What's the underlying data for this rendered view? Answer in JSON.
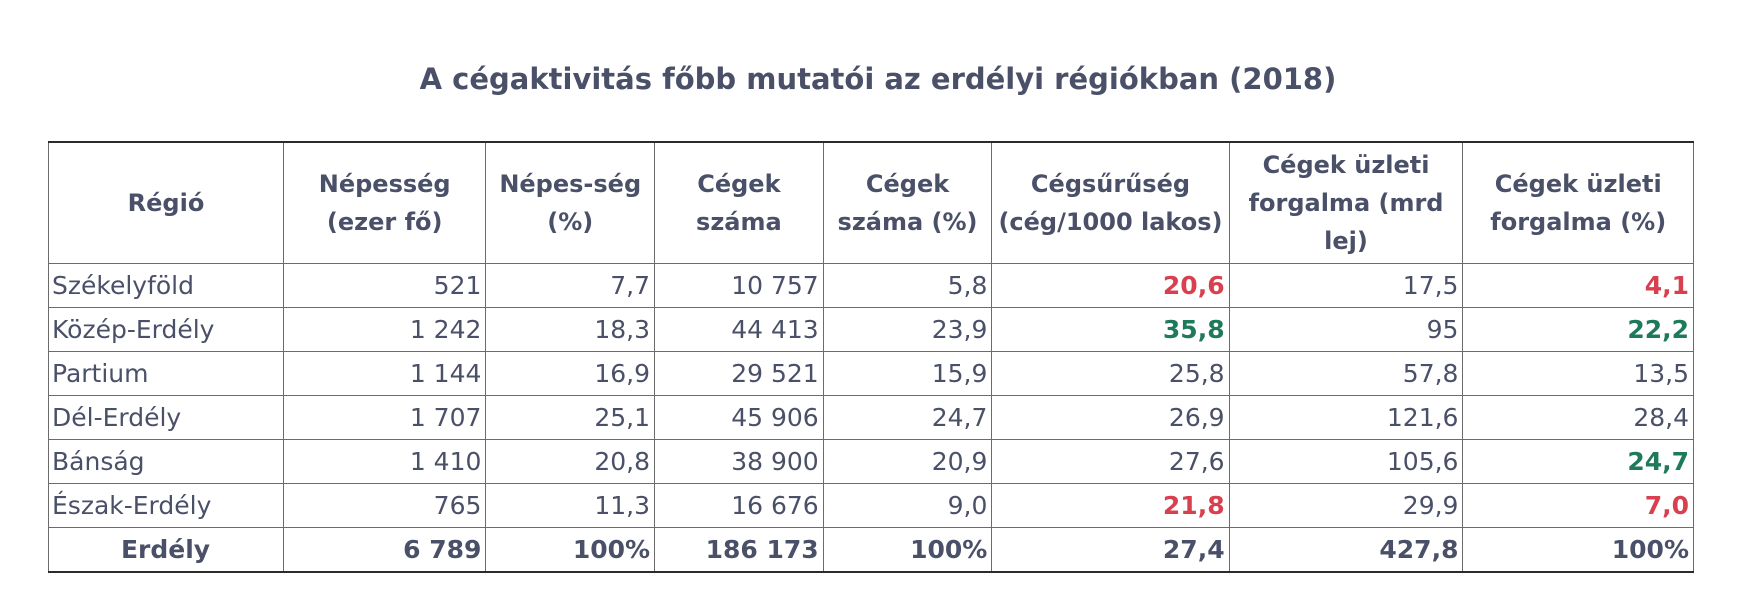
{
  "title": "A cégaktivitás főbb mutatói az erdélyi régiókban (2018)",
  "columns": [
    "Régió",
    "Népesség (ezer fő)",
    "Népes-ség (%)",
    "Cégek száma",
    "Cégek száma (%)",
    "Cégsűrűség (cég/1000 lakos)",
    "Cégek üzleti forgalma (mrd lej)",
    "Cégek üzleti forgalma (%)"
  ],
  "rows": [
    [
      "Székelyföld",
      "521",
      "7,7",
      "10 757",
      "5,8",
      "20,6",
      "17,5",
      "4,1"
    ],
    [
      "Közép-Erdély",
      "1 242",
      "18,3",
      "44 413",
      "23,9",
      "35,8",
      "95",
      "22,2"
    ],
    [
      "Partium",
      "1 144",
      "16,9",
      "29 521",
      "15,9",
      "25,8",
      "57,8",
      "13,5"
    ],
    [
      "Dél-Erdély",
      "1 707",
      "25,1",
      "45 906",
      "24,7",
      "26,9",
      "121,6",
      "28,4"
    ],
    [
      "Bánság",
      "1 410",
      "20,8",
      "38 900",
      "20,9",
      "27,6",
      "105,6",
      "24,7"
    ],
    [
      "Észak-Erdély",
      "765",
      "11,3",
      "16 676",
      "9,0",
      "21,8",
      "29,9",
      "7,0"
    ]
  ],
  "total": [
    "Erdély",
    "6 789",
    "100%",
    "186 173",
    "100%",
    "27,4",
    "427,8",
    "100%"
  ],
  "highlight_colors": {
    "low": "#d9404f",
    "high": "#1f7a5c"
  }
}
